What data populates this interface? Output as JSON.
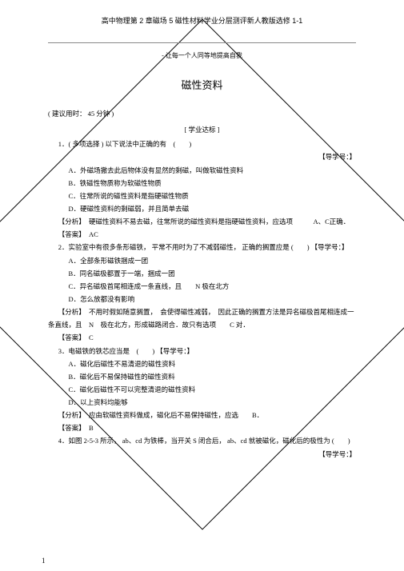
{
  "header": {
    "top": "高中物理第 2 章磁场 5 磁性材料学业分层测评新人教版选修 1-1",
    "sub": "- 让每一个人同等地提高自我"
  },
  "title": "磁性资料",
  "time_note": "( 建议用时：  45 分钟 )",
  "section_label": "[ 学业达标 ]",
  "q1": {
    "stem": "1．( 多项选择 ) 以下说法中正确的有　(　　)",
    "tag": "【导学号：】",
    "A": "A．外磁场撤去此后物体没有显然的剩磁，叫做软磁性资料",
    "B": "B．铁磁性物质称为软磁性物质",
    "C": "C．往常所说的磁性资料是指硬磁性物质",
    "D": "D．硬磁性资料的剩磁弱，并且简单去磁",
    "analysis": "【分析】　硬磁性资料不易去磁，往常所说的磁性资料是指硬磁性资料，应选项　　　A、C正确．",
    "answer": "【答案】　AC"
  },
  "q2": {
    "stem": "2．实验室中有很多条形磁铁， 平常不用时为了不减弱磁性，  正确的搁置应是 (　　) 【导学号：】",
    "A": "A．全部条形磁铁捆成一团",
    "B": "B．同名磁极都置于一端，捆成一团",
    "C": "C．异名磁极首尾相连成一条直线，且　　N 极在北方",
    "D": "D．怎么放都没有影响",
    "analysis": "【分析】　不用时假如随意搁置，　会使得磁性减弱，　因此正确的搁置方法是异名磁极首尾相连成一条直线，且　N　极在北方，形成磁路闭合．故只有选项　　C 对．",
    "answer": "【答案】　C"
  },
  "q3": {
    "stem": "3．电磁铁的铁芯应当是　(　　) 【导学号：】",
    "A": "A．磁化后磁性不易清退的磁性资料",
    "B": "B．磁化后不易保持磁性的磁性资料",
    "C": "C．磁化后磁性不可以完整清退的磁性资料",
    "D": "D．以上资料均能够",
    "analysis": "【分析】　应由软磁性资料做成，磁化后不易保持磁性，应选　　B．",
    "answer": "【答案】　B"
  },
  "q4": {
    "stem": "4．如图 2-5-3  所示， ab、cd 为铁棒，当开关 S 闭合后， ab、cd 就被磁化，磁化后的极性为 (　　)",
    "tag": "【导学号：】"
  },
  "page_number": "1"
}
